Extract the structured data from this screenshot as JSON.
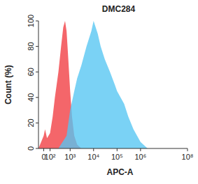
{
  "chart_data": {
    "type": "area",
    "title": "DMC284",
    "x_label": "APC-A",
    "y_label": "Count (%)",
    "series": [
      {
        "color": "#f4666a",
        "x": [
          -80,
          0,
          20,
          50,
          100,
          150,
          200,
          300,
          400,
          500,
          600,
          700,
          800,
          1000,
          1200,
          1500,
          2000,
          3000
        ],
        "values": [
          0,
          10,
          15,
          8,
          12,
          25,
          40,
          60,
          80,
          95,
          100,
          92,
          75,
          45,
          25,
          10,
          3,
          0
        ]
      },
      {
        "color": "#55c5f2",
        "x": [
          300,
          700,
          1000,
          1500,
          2000,
          3000,
          5000,
          8000,
          10000,
          15000,
          20000,
          30000,
          50000,
          80000,
          100000,
          200000,
          300000,
          500000,
          1000000,
          2000000
        ],
        "values": [
          0,
          10,
          30,
          45,
          55,
          65,
          80,
          92,
          100,
          90,
          80,
          70,
          60,
          50,
          45,
          35,
          25,
          15,
          5,
          0
        ]
      }
    ],
    "xlim": [
      -80,
      100000000
    ],
    "xticks": [
      0,
      {
        "value": 100,
        "label": "10²"
      },
      {
        "value": 1000,
        "label": "10³"
      },
      {
        "value": 10000,
        "label": "10⁴"
      },
      {
        "value": 100000,
        "label": "10⁵"
      },
      {
        "value": 1000000,
        "label": "10⁶"
      },
      {
        "value": 100000000,
        "label": "10⁸"
      }
    ],
    "ylim": [
      0,
      100
    ],
    "yticks": [
      0,
      20,
      40,
      60,
      80,
      100
    ],
    "grid": false
  }
}
